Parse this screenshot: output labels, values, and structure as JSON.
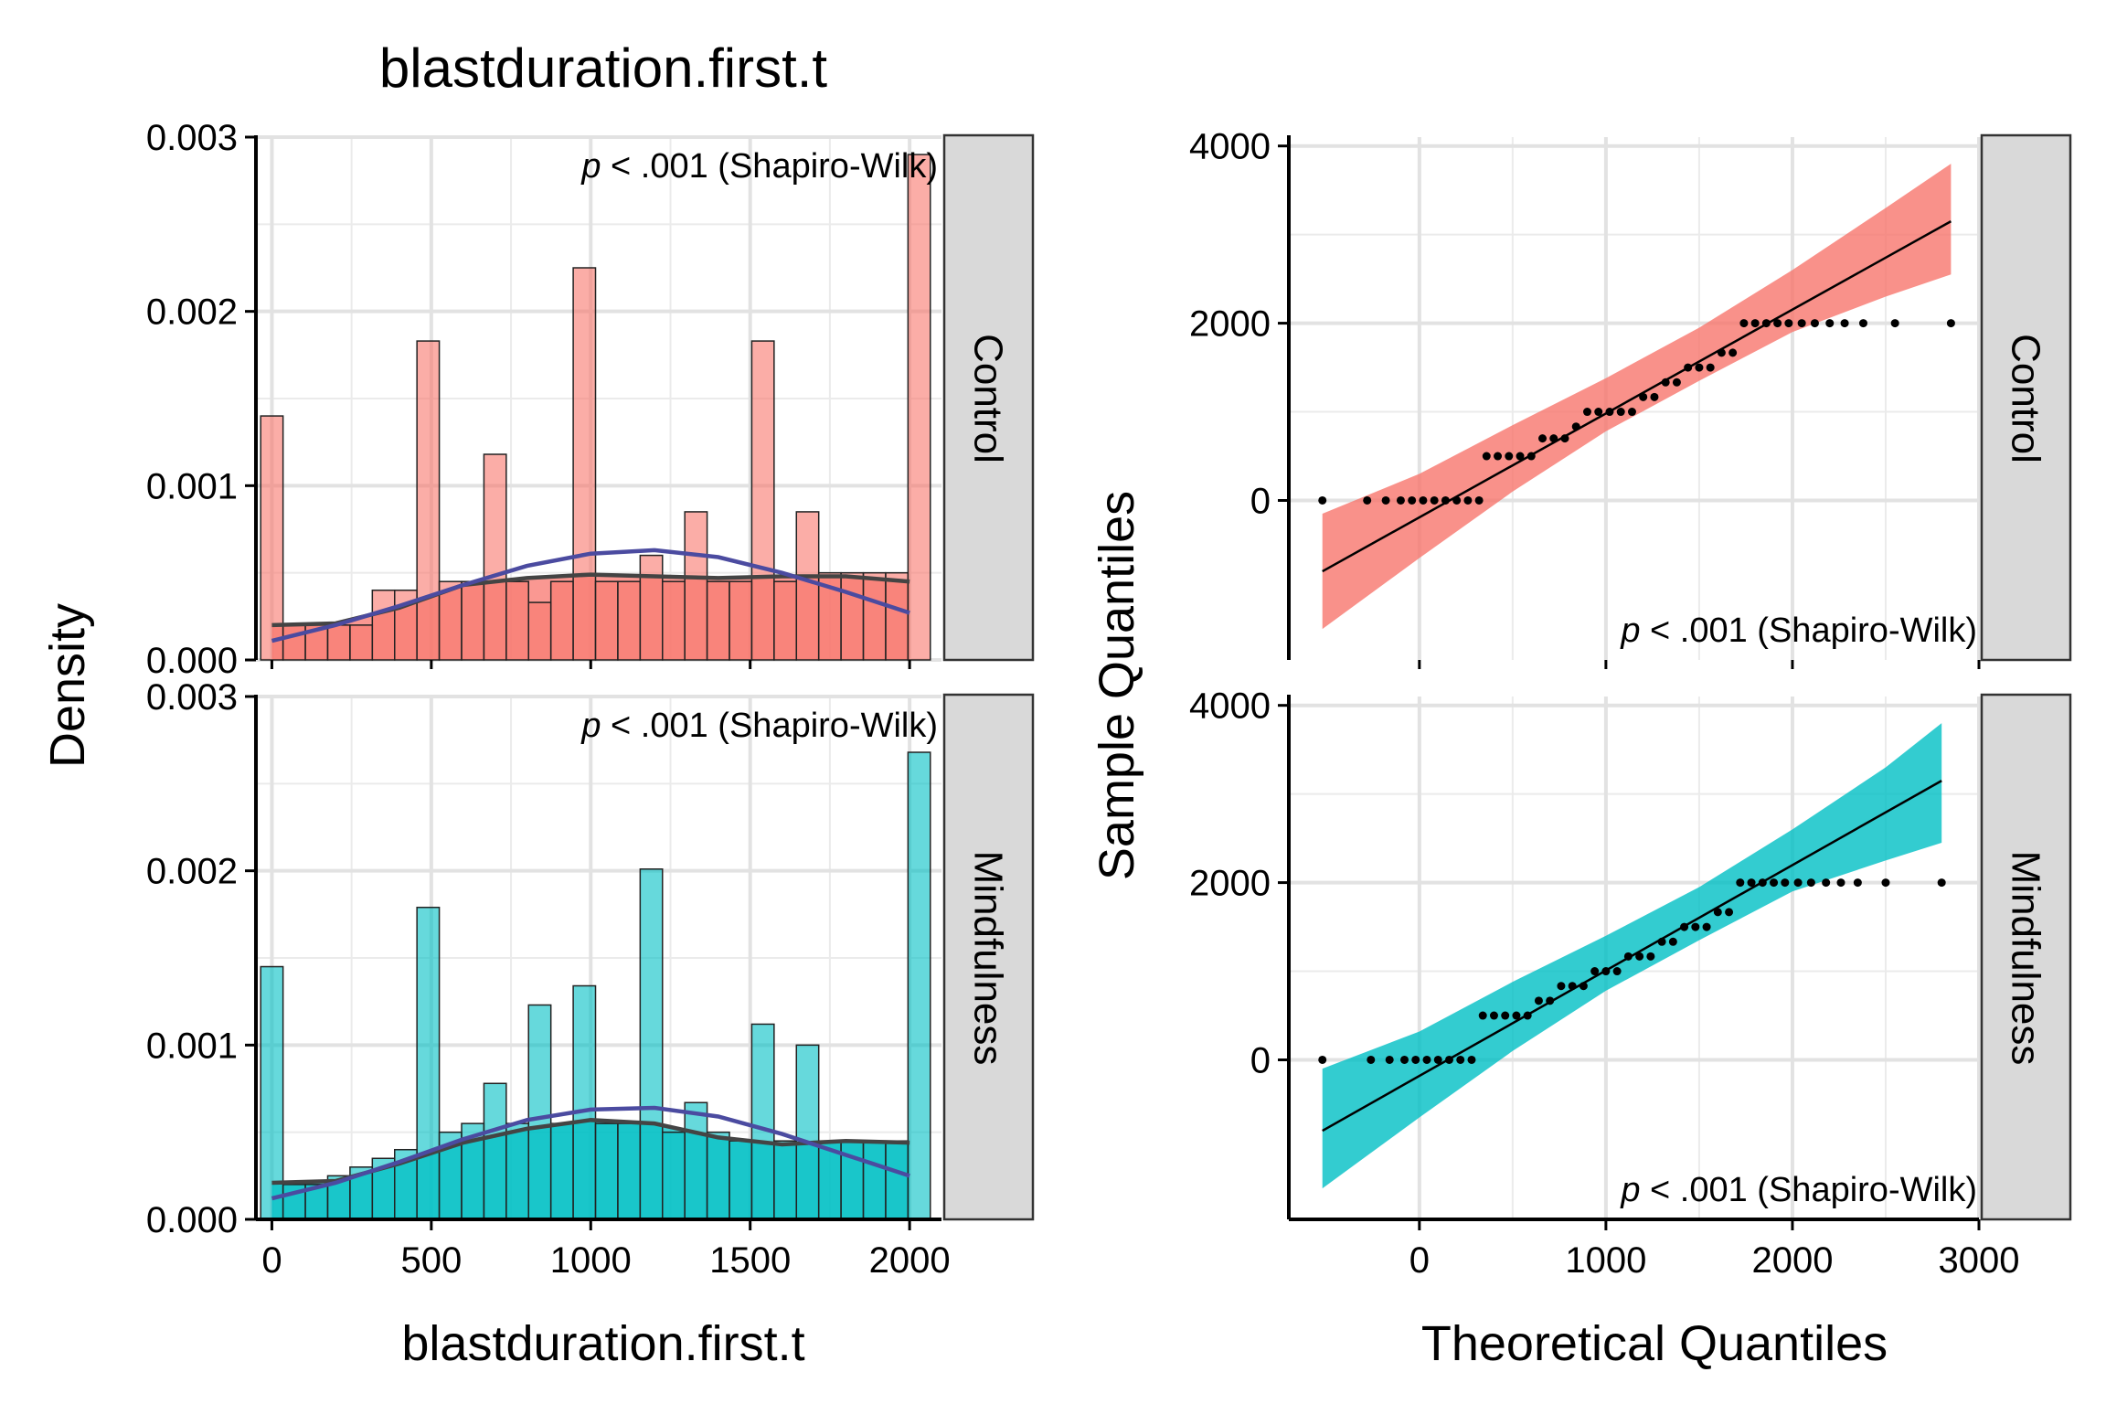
{
  "figure": {
    "title": "blastduration.first.t",
    "hist_xlabel": "blastduration.first.t",
    "hist_ylabel": "Density",
    "qq_xlabel": "Theoretical Quantiles",
    "qq_ylabel": "Sample Quantiles"
  },
  "chart_data": [
    {
      "type": "bar",
      "panel": "histogram",
      "facet": "Control",
      "annotation_p": "p",
      "annotation_rest": " < .001 (Shapiro-Wilk)",
      "fill_color": "#F8766D",
      "xlim": [
        -50,
        2100
      ],
      "ylim": [
        0,
        0.003
      ],
      "x_ticks": [
        0,
        500,
        1000,
        1500,
        2000
      ],
      "y_ticks": [
        0,
        0.001,
        0.002,
        0.003
      ],
      "y_tick_labels": [
        "0.000",
        "0.001",
        "0.002",
        "0.003"
      ],
      "bins": {
        "starts": [
          -35,
          35,
          105,
          175,
          245,
          315,
          385,
          455,
          525,
          595,
          665,
          735,
          805,
          875,
          945,
          1015,
          1085,
          1155,
          1225,
          1295,
          1365,
          1435,
          1505,
          1575,
          1645,
          1715,
          1785,
          1855,
          1925,
          1995
        ],
        "width": 70,
        "density": [
          0.0014,
          0.0002,
          0.0002,
          0.0002,
          0.0002,
          0.0004,
          0.0004,
          0.00183,
          0.00045,
          0.00045,
          0.00118,
          0.00045,
          0.00033,
          0.00045,
          0.00225,
          0.00045,
          0.00045,
          0.0006,
          0.00045,
          0.00085,
          0.00045,
          0.00045,
          0.00183,
          0.00045,
          0.00085,
          0.0005,
          0.0005,
          0.0005,
          0.0005,
          0.0029
        ]
      },
      "kde_curve": {
        "name": "kernel density",
        "color": "#444444",
        "x": [
          0,
          200,
          400,
          600,
          800,
          1000,
          1200,
          1400,
          1600,
          1800,
          2000
        ],
        "y": [
          0.0002,
          0.00021,
          0.0003,
          0.00043,
          0.00047,
          0.00049,
          0.00048,
          0.00047,
          0.00048,
          0.00048,
          0.00045
        ]
      },
      "normal_curve": {
        "name": "normal density",
        "color": "#4B4BA0",
        "x": [
          0,
          200,
          400,
          600,
          800,
          1000,
          1200,
          1400,
          1600,
          1800,
          2000
        ],
        "y": [
          0.00011,
          0.0002,
          0.00031,
          0.00043,
          0.00054,
          0.00061,
          0.00063,
          0.00059,
          0.0005,
          0.00039,
          0.00027
        ]
      }
    },
    {
      "type": "bar",
      "panel": "histogram",
      "facet": "Mindfulness",
      "annotation_p": "p",
      "annotation_rest": " < .001 (Shapiro-Wilk)",
      "fill_color": "#00BFC4",
      "xlim": [
        -50,
        2100
      ],
      "ylim": [
        0,
        0.003
      ],
      "x_ticks": [
        0,
        500,
        1000,
        1500,
        2000
      ],
      "y_ticks": [
        0,
        0.001,
        0.002,
        0.003
      ],
      "y_tick_labels": [
        "0.000",
        "0.001",
        "0.002",
        "0.003"
      ],
      "bins": {
        "starts": [
          -35,
          35,
          105,
          175,
          245,
          315,
          385,
          455,
          525,
          595,
          665,
          735,
          805,
          875,
          945,
          1015,
          1085,
          1155,
          1225,
          1295,
          1365,
          1435,
          1505,
          1575,
          1645,
          1715,
          1785,
          1855,
          1925,
          1995
        ],
        "width": 70,
        "density": [
          0.00145,
          0.0002,
          0.0002,
          0.00025,
          0.0003,
          0.00035,
          0.0004,
          0.00179,
          0.0005,
          0.00055,
          0.00078,
          0.00055,
          0.00123,
          0.00055,
          0.00134,
          0.00055,
          0.00055,
          0.00201,
          0.0005,
          0.00067,
          0.0005,
          0.00045,
          0.00112,
          0.00045,
          0.001,
          0.00045,
          0.00045,
          0.00045,
          0.00045,
          0.00268
        ]
      },
      "kde_curve": {
        "name": "kernel density",
        "color": "#444444",
        "x": [
          0,
          200,
          400,
          600,
          800,
          1000,
          1200,
          1400,
          1600,
          1800,
          2000
        ],
        "y": [
          0.00021,
          0.00022,
          0.00032,
          0.00044,
          0.00052,
          0.00057,
          0.00055,
          0.00047,
          0.00043,
          0.00045,
          0.00044
        ]
      },
      "normal_curve": {
        "name": "normal density",
        "color": "#4B4BA0",
        "x": [
          0,
          200,
          400,
          600,
          800,
          1000,
          1200,
          1400,
          1600,
          1800,
          2000
        ],
        "y": [
          0.00012,
          0.00021,
          0.00033,
          0.00046,
          0.00057,
          0.00063,
          0.00064,
          0.00059,
          0.00049,
          0.00037,
          0.00025
        ]
      }
    },
    {
      "type": "scatter",
      "panel": "qqplot",
      "facet": "Control",
      "annotation_p": "p",
      "annotation_rest": " < .001 (Shapiro-Wilk)",
      "band_color": "#F8766D",
      "xlim": [
        -700,
        3000
      ],
      "ylim": [
        -1800,
        4100
      ],
      "x_ticks": [
        0,
        1000,
        2000,
        3000
      ],
      "y_ticks": [
        0,
        2000,
        4000
      ],
      "reference_line": {
        "x": [
          -520,
          2850
        ],
        "y": [
          -800,
          3150
        ]
      },
      "band": {
        "x": [
          -520,
          0,
          500,
          1000,
          1500,
          2000,
          2500,
          2850
        ],
        "lower": [
          -1450,
          -650,
          100,
          780,
          1350,
          1900,
          2300,
          2550
        ],
        "upper": [
          -150,
          300,
          850,
          1380,
          1950,
          2600,
          3300,
          3800
        ]
      },
      "points": {
        "x": [
          -520,
          -280,
          -180,
          -100,
          -40,
          20,
          80,
          140,
          200,
          260,
          320,
          360,
          420,
          480,
          540,
          600,
          660,
          720,
          780,
          840,
          900,
          960,
          1020,
          1080,
          1140,
          1200,
          1260,
          1320,
          1380,
          1440,
          1500,
          1560,
          1620,
          1680,
          1740,
          1800,
          1860,
          1920,
          1980,
          2050,
          2120,
          2200,
          2280,
          2380,
          2550,
          2850
        ],
        "y": [
          0,
          0,
          0,
          0,
          0,
          0,
          0,
          0,
          0,
          0,
          0,
          500,
          500,
          500,
          500,
          500,
          700,
          700,
          700,
          833,
          1000,
          1000,
          1000,
          1000,
          1000,
          1167,
          1167,
          1333,
          1333,
          1500,
          1500,
          1500,
          1667,
          1667,
          2000,
          2000,
          2000,
          2000,
          2000,
          2000,
          2000,
          2000,
          2000,
          2000,
          2000,
          2000
        ]
      }
    },
    {
      "type": "scatter",
      "panel": "qqplot",
      "facet": "Mindfulness",
      "annotation_p": "p",
      "annotation_rest": " < .001 (Shapiro-Wilk)",
      "band_color": "#00BFC4",
      "xlim": [
        -700,
        3000
      ],
      "ylim": [
        -1800,
        4100
      ],
      "x_ticks": [
        0,
        1000,
        2000,
        3000
      ],
      "y_ticks": [
        0,
        2000,
        4000
      ],
      "reference_line": {
        "x": [
          -520,
          2800
        ],
        "y": [
          -800,
          3150
        ]
      },
      "band": {
        "x": [
          -520,
          0,
          500,
          1000,
          1500,
          2000,
          2500,
          2800
        ],
        "lower": [
          -1450,
          -650,
          100,
          780,
          1350,
          1900,
          2250,
          2450
        ],
        "upper": [
          -100,
          320,
          880,
          1400,
          1950,
          2600,
          3300,
          3800
        ]
      },
      "points": {
        "x": [
          -520,
          -260,
          -160,
          -80,
          -20,
          40,
          100,
          160,
          220,
          280,
          340,
          400,
          460,
          520,
          580,
          640,
          700,
          760,
          820,
          880,
          940,
          1000,
          1060,
          1120,
          1180,
          1240,
          1300,
          1360,
          1420,
          1480,
          1540,
          1600,
          1660,
          1720,
          1780,
          1840,
          1900,
          1960,
          2030,
          2100,
          2180,
          2260,
          2350,
          2500,
          2800
        ],
        "y": [
          0,
          0,
          0,
          0,
          0,
          0,
          0,
          0,
          0,
          0,
          500,
          500,
          500,
          500,
          500,
          667,
          667,
          833,
          833,
          833,
          1000,
          1000,
          1000,
          1167,
          1167,
          1167,
          1333,
          1333,
          1500,
          1500,
          1500,
          1667,
          1667,
          2000,
          2000,
          2000,
          2000,
          2000,
          2000,
          2000,
          2000,
          2000,
          2000,
          2000,
          2000
        ]
      }
    }
  ]
}
